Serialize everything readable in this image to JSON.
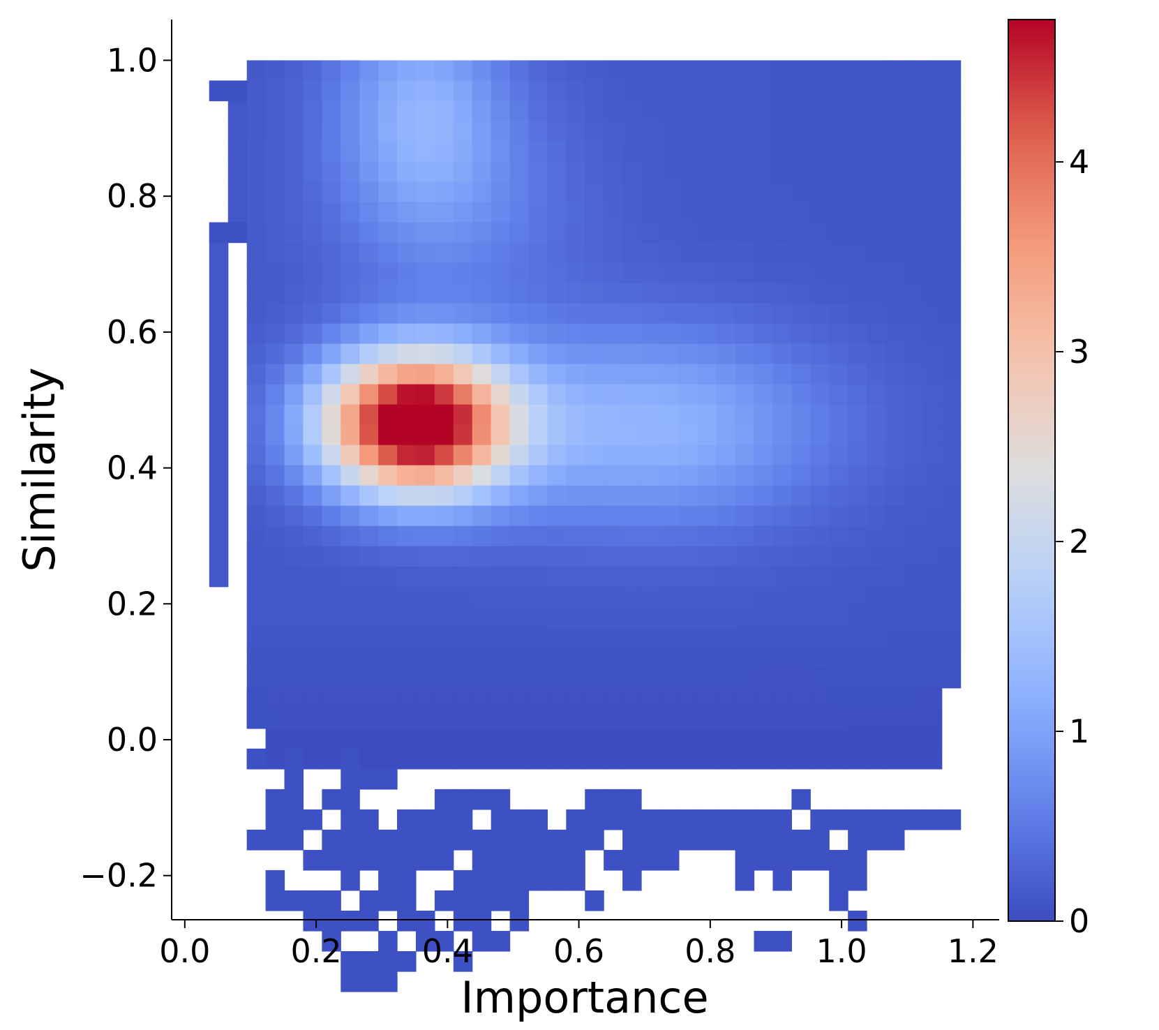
{
  "chart_data": {
    "type": "heatmap",
    "xlabel": "Importance",
    "ylabel": "Similarity",
    "xlim": [
      -0.02,
      1.24
    ],
    "ylim": [
      -0.265,
      1.06
    ],
    "xticks": [
      {
        "value": 0.0,
        "label": "0.0"
      },
      {
        "value": 0.2,
        "label": "0.2"
      },
      {
        "value": 0.4,
        "label": "0.4"
      },
      {
        "value": 0.6,
        "label": "0.6"
      },
      {
        "value": 0.8,
        "label": "0.8"
      },
      {
        "value": 1.0,
        "label": "1.0"
      },
      {
        "value": 1.2,
        "label": "1.2"
      }
    ],
    "yticks": [
      {
        "value": -0.2,
        "label": "−0.2"
      },
      {
        "value": 0.0,
        "label": "0.0"
      },
      {
        "value": 0.2,
        "label": "0.2"
      },
      {
        "value": 0.4,
        "label": "0.4"
      },
      {
        "value": 0.6,
        "label": "0.6"
      },
      {
        "value": 0.8,
        "label": "0.8"
      },
      {
        "value": 1.0,
        "label": "1.0"
      }
    ],
    "colorbar": {
      "colormap": "coolwarm",
      "range": [
        0,
        4.75
      ],
      "ticks": [
        {
          "value": 0,
          "label": "0"
        },
        {
          "value": 1,
          "label": "1"
        },
        {
          "value": 2,
          "label": "2"
        },
        {
          "value": 3,
          "label": "3"
        },
        {
          "value": 4,
          "label": "4"
        }
      ]
    },
    "grid": false,
    "bins": {
      "x_start": 0.0372,
      "x_step": 0.0286,
      "nx": 40,
      "y_top": 1.0,
      "y_step": 0.0298,
      "ny": 40
    },
    "density_model": {
      "peak": {
        "center": [
          0.35,
          0.465
        ],
        "height": 5.2,
        "sigma_x": 0.1,
        "sigma_y": 0.072
      },
      "ridge": {
        "center": [
          0.7,
          0.46
        ],
        "height": 1.15,
        "sigma_x": 0.2,
        "sigma_y": 0.1
      },
      "upper": {
        "center": [
          0.36,
          0.93
        ],
        "height": 1.0,
        "sigma_x": 0.09,
        "sigma_y": 0.12
      },
      "upper_shoulder": {
        "center": [
          0.42,
          0.78
        ],
        "height": 0.4,
        "sigma_x": 0.14,
        "sigma_y": 0.12
      },
      "background": 0.12,
      "right_falloff": 0.5
    },
    "sparse_cells": [
      [
        0,
        1
      ],
      [
        0,
        8
      ],
      [
        1,
        1
      ],
      [
        1,
        8
      ],
      [
        2,
        31
      ],
      [
        2,
        32
      ],
      [
        2,
        34
      ],
      [
        2,
        38
      ],
      [
        3,
        32
      ],
      [
        3,
        36
      ],
      [
        3,
        37
      ],
      [
        3,
        38
      ],
      [
        3,
        40
      ],
      [
        3,
        41
      ],
      [
        4,
        34
      ],
      [
        4,
        35
      ],
      [
        4,
        36
      ],
      [
        4,
        37
      ],
      [
        4,
        38
      ],
      [
        4,
        41
      ],
      [
        5,
        37
      ],
      [
        5,
        39
      ],
      [
        5,
        41
      ],
      [
        5,
        42
      ],
      [
        6,
        36
      ],
      [
        6,
        38
      ],
      [
        6,
        39
      ],
      [
        6,
        41
      ],
      [
        6,
        42
      ],
      [
        6,
        43
      ],
      [
        7,
        34
      ],
      [
        7,
        35
      ],
      [
        7,
        36
      ],
      [
        7,
        37
      ],
      [
        7,
        38
      ],
      [
        7,
        39
      ],
      [
        7,
        40
      ],
      [
        7,
        42
      ],
      [
        7,
        44
      ],
      [
        7,
        45
      ],
      [
        8,
        35
      ],
      [
        8,
        37
      ],
      [
        8,
        38
      ],
      [
        8,
        39
      ],
      [
        8,
        41
      ],
      [
        8,
        42
      ],
      [
        8,
        44
      ],
      [
        8,
        45
      ],
      [
        9,
        35
      ],
      [
        9,
        38
      ],
      [
        9,
        39
      ],
      [
        9,
        40
      ],
      [
        9,
        41
      ],
      [
        9,
        43
      ],
      [
        9,
        44
      ],
      [
        9,
        45
      ],
      [
        10,
        37
      ],
      [
        10,
        38
      ],
      [
        10,
        39
      ],
      [
        10,
        40
      ],
      [
        10,
        41
      ],
      [
        10,
        42
      ],
      [
        10,
        44
      ],
      [
        11,
        37
      ],
      [
        11,
        38
      ],
      [
        11,
        39
      ],
      [
        11,
        42
      ],
      [
        11,
        43
      ],
      [
        12,
        36
      ],
      [
        12,
        37
      ],
      [
        12,
        38
      ],
      [
        12,
        39
      ],
      [
        12,
        41
      ],
      [
        12,
        43
      ],
      [
        13,
        36
      ],
      [
        13,
        37
      ],
      [
        13,
        38
      ],
      [
        13,
        40
      ],
      [
        13,
        41
      ],
      [
        13,
        42
      ],
      [
        13,
        44
      ],
      [
        14,
        36
      ],
      [
        14,
        38
      ],
      [
        14,
        39
      ],
      [
        14,
        40
      ],
      [
        14,
        41
      ],
      [
        14,
        42
      ],
      [
        14,
        43
      ],
      [
        15,
        36
      ],
      [
        15,
        37
      ],
      [
        15,
        38
      ],
      [
        15,
        39
      ],
      [
        15,
        40
      ],
      [
        15,
        41
      ],
      [
        15,
        43
      ],
      [
        16,
        37
      ],
      [
        16,
        38
      ],
      [
        16,
        39
      ],
      [
        16,
        40
      ],
      [
        16,
        41
      ],
      [
        16,
        42
      ],
      [
        17,
        37
      ],
      [
        17,
        38
      ],
      [
        17,
        39
      ],
      [
        17,
        40
      ],
      [
        18,
        38
      ],
      [
        18,
        39
      ],
      [
        18,
        40
      ],
      [
        19,
        37
      ],
      [
        19,
        38
      ],
      [
        19,
        39
      ],
      [
        19,
        40
      ],
      [
        20,
        36
      ],
      [
        20,
        37
      ],
      [
        20,
        38
      ],
      [
        20,
        41
      ],
      [
        21,
        36
      ],
      [
        21,
        37
      ],
      [
        21,
        39
      ],
      [
        22,
        36
      ],
      [
        22,
        37
      ],
      [
        22,
        38
      ],
      [
        22,
        39
      ],
      [
        22,
        40
      ],
      [
        23,
        37
      ],
      [
        23,
        38
      ],
      [
        23,
        39
      ],
      [
        24,
        37
      ],
      [
        24,
        38
      ],
      [
        24,
        39
      ],
      [
        25,
        37
      ],
      [
        25,
        38
      ],
      [
        26,
        37
      ],
      [
        26,
        38
      ],
      [
        27,
        37
      ],
      [
        27,
        38
      ],
      [
        28,
        37
      ],
      [
        28,
        38
      ],
      [
        28,
        39
      ],
      [
        28,
        40
      ],
      [
        29,
        37
      ],
      [
        29,
        38
      ],
      [
        29,
        39
      ],
      [
        29,
        43
      ],
      [
        30,
        37
      ],
      [
        30,
        38
      ],
      [
        30,
        39
      ],
      [
        30,
        40
      ],
      [
        30,
        43
      ],
      [
        31,
        36
      ],
      [
        31,
        38
      ],
      [
        31,
        39
      ],
      [
        32,
        37
      ],
      [
        32,
        38
      ],
      [
        32,
        39
      ],
      [
        33,
        37
      ],
      [
        33,
        39
      ],
      [
        33,
        40
      ],
      [
        33,
        41
      ],
      [
        34,
        37
      ],
      [
        34,
        38
      ],
      [
        34,
        39
      ],
      [
        34,
        40
      ],
      [
        34,
        42
      ],
      [
        35,
        37
      ],
      [
        35,
        38
      ],
      [
        36,
        37
      ],
      [
        36,
        38
      ],
      [
        37,
        37
      ],
      [
        38,
        37
      ],
      [
        39,
        37
      ]
    ],
    "empty_cells": [
      [
        0,
        2
      ],
      [
        0,
        3
      ],
      [
        0,
        4
      ],
      [
        0,
        5
      ],
      [
        0,
        6
      ],
      [
        0,
        7
      ],
      [
        1,
        0
      ],
      [
        1,
        9
      ],
      [
        1,
        10
      ],
      [
        1,
        11
      ],
      [
        1,
        12
      ],
      [
        1,
        13
      ],
      [
        1,
        14
      ],
      [
        1,
        15
      ],
      [
        1,
        16
      ],
      [
        1,
        17
      ],
      [
        1,
        18
      ],
      [
        1,
        19
      ],
      [
        1,
        20
      ],
      [
        1,
        21
      ],
      [
        1,
        22
      ],
      [
        1,
        23
      ],
      [
        1,
        24
      ],
      [
        1,
        25
      ],
      [
        1,
        26
      ],
      [
        1,
        27
      ],
      [
        1,
        28
      ],
      [
        1,
        29
      ],
      [
        1,
        30
      ],
      [
        1,
        31
      ],
      [
        1,
        32
      ],
      [
        1,
        33
      ],
      [
        1,
        34
      ],
      [
        2,
        33
      ],
      [
        2,
        35
      ],
      [
        2,
        36
      ],
      [
        2,
        37
      ],
      [
        33,
        36
      ],
      [
        37,
        36
      ],
      [
        38,
        36
      ],
      [
        39,
        36
      ]
    ]
  }
}
